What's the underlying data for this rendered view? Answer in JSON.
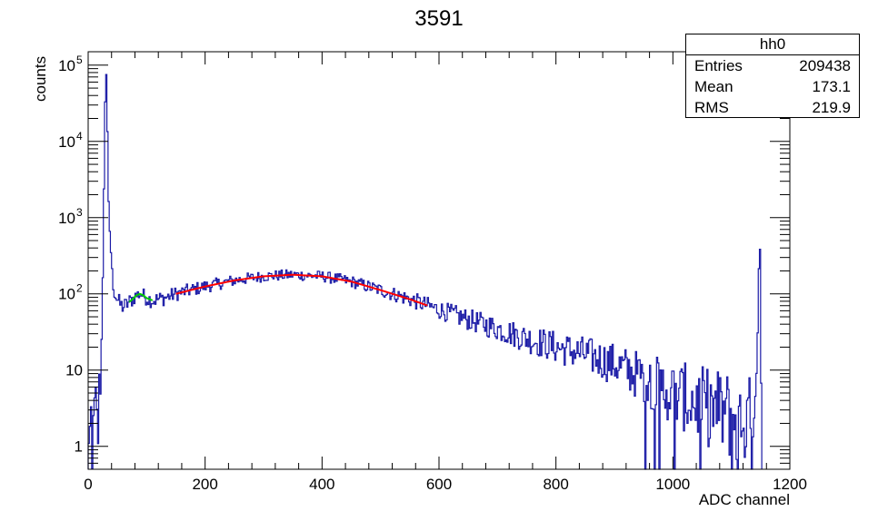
{
  "chart_data": {
    "type": "histogram",
    "title": "3591",
    "xlabel": "ADC channel",
    "ylabel": "counts",
    "xlim": [
      0,
      1200
    ],
    "ylim": [
      0.5,
      150000
    ],
    "yscale": "log",
    "grid": false,
    "x_ticks": [
      0,
      200,
      400,
      600,
      800,
      1000,
      1200
    ],
    "y_ticks": [
      {
        "value": 1,
        "label": "1"
      },
      {
        "value": 10,
        "label": "10"
      },
      {
        "value": 100,
        "label": "10",
        "exp": "2"
      },
      {
        "value": 1000,
        "label": "10",
        "exp": "3"
      },
      {
        "value": 10000,
        "label": "10",
        "exp": "4"
      },
      {
        "value": 100000,
        "label": "10",
        "exp": "5"
      }
    ],
    "colors": {
      "histogram": "#1a1aa6",
      "fit_main": "#ff0000",
      "fit_peak": "#00cc00",
      "frame": "#000000"
    },
    "histogram_envelope": [
      [
        0,
        0.5
      ],
      [
        2,
        1
      ],
      [
        5,
        2
      ],
      [
        8,
        1
      ],
      [
        10,
        2
      ],
      [
        14,
        3
      ],
      [
        16,
        2
      ],
      [
        18,
        3
      ],
      [
        20,
        5
      ],
      [
        22,
        15
      ],
      [
        24,
        45
      ],
      [
        26,
        500
      ],
      [
        28,
        12000
      ],
      [
        30,
        100000
      ],
      [
        32,
        60000
      ],
      [
        34,
        2500
      ],
      [
        36,
        900
      ],
      [
        38,
        500
      ],
      [
        40,
        250
      ],
      [
        42,
        150
      ],
      [
        44,
        110
      ],
      [
        48,
        90
      ],
      [
        52,
        80
      ],
      [
        56,
        70
      ],
      [
        60,
        68
      ],
      [
        64,
        70
      ],
      [
        70,
        78
      ],
      [
        76,
        85
      ],
      [
        82,
        95
      ],
      [
        88,
        100
      ],
      [
        94,
        96
      ],
      [
        100,
        88
      ],
      [
        110,
        82
      ],
      [
        130,
        88
      ],
      [
        150,
        100
      ],
      [
        200,
        125
      ],
      [
        250,
        150
      ],
      [
        300,
        170
      ],
      [
        350,
        178
      ],
      [
        400,
        170
      ],
      [
        450,
        145
      ],
      [
        500,
        112
      ],
      [
        550,
        85
      ],
      [
        600,
        62
      ],
      [
        650,
        46
      ],
      [
        700,
        35
      ],
      [
        750,
        26
      ],
      [
        800,
        20
      ],
      [
        850,
        16
      ],
      [
        900,
        12
      ],
      [
        950,
        8
      ],
      [
        1000,
        5
      ],
      [
        1050,
        3.5
      ],
      [
        1100,
        2.5
      ],
      [
        1130,
        2
      ],
      [
        1140,
        4
      ],
      [
        1145,
        25
      ],
      [
        1148,
        600
      ],
      [
        1150,
        200
      ],
      [
        1152,
        0.5
      ]
    ],
    "fits": [
      {
        "color": "green",
        "x_range": [
          70,
          110
        ],
        "peak_x": 92,
        "peak_y": 100
      },
      {
        "color": "red",
        "x_range": [
          150,
          580
        ],
        "peak_x": 350,
        "peak_y": 180
      }
    ],
    "stats": {
      "title": "hh0",
      "rows": [
        {
          "label": "Entries",
          "value": "209438"
        },
        {
          "label": "Mean",
          "value": "173.1"
        },
        {
          "label": "RMS",
          "value": "219.9"
        }
      ]
    }
  }
}
